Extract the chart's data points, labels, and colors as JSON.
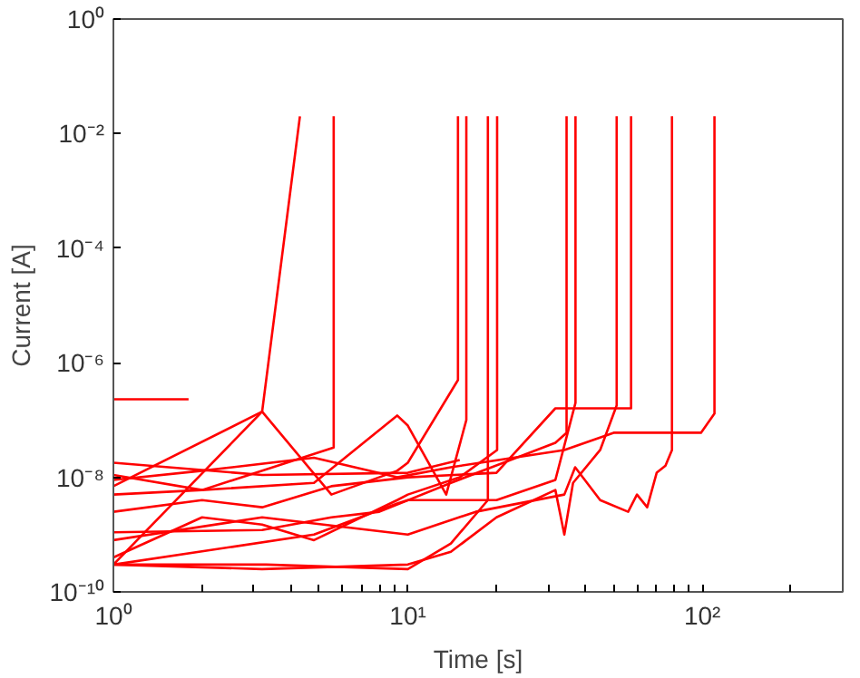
{
  "chart_data": {
    "type": "line",
    "xlabel": "Time [s]",
    "ylabel": "Current [A]",
    "log": "xy",
    "grid": false,
    "xlim": [
      1,
      300
    ],
    "ylim": [
      1e-10,
      1
    ],
    "xticks": [
      {
        "value": 1,
        "label": "10⁰"
      },
      {
        "value": 2,
        "label": null
      },
      {
        "value": 3,
        "label": null
      },
      {
        "value": 4,
        "label": null
      },
      {
        "value": 5,
        "label": null
      },
      {
        "value": 6,
        "label": null
      },
      {
        "value": 7,
        "label": null
      },
      {
        "value": 8,
        "label": null
      },
      {
        "value": 9,
        "label": null
      },
      {
        "value": 10,
        "label": "10¹"
      },
      {
        "value": 20,
        "label": null
      },
      {
        "value": 30,
        "label": null
      },
      {
        "value": 40,
        "label": null
      },
      {
        "value": 50,
        "label": null
      },
      {
        "value": 60,
        "label": null
      },
      {
        "value": 70,
        "label": null
      },
      {
        "value": 80,
        "label": null
      },
      {
        "value": 90,
        "label": null
      },
      {
        "value": 100,
        "label": "10²"
      },
      {
        "value": 200,
        "label": null
      }
    ],
    "yticks": [
      {
        "value": 1e-10,
        "label": "10⁻¹⁰"
      },
      {
        "value": 1e-08,
        "label": "10⁻⁸"
      },
      {
        "value": 1e-06,
        "label": "10⁻⁶"
      },
      {
        "value": 0.0001,
        "label": "10⁻⁴"
      },
      {
        "value": 0.01,
        "label": "10⁻²"
      },
      {
        "value": 1,
        "label": "10⁰"
      }
    ],
    "series": [
      {
        "color": "#ff0000",
        "x": [
          1,
          3.2,
          4.3
        ],
        "values": [
          3e-10,
          1.4e-07,
          0.02
        ]
      },
      {
        "color": "#ff0000",
        "x": [
          1,
          2,
          5.6,
          5.6
        ],
        "values": [
          1.1e-08,
          6e-09,
          3.3e-08,
          0.02
        ]
      },
      {
        "color": "#ff0000",
        "x": [
          1,
          1.8
        ],
        "values": [
          2.3e-07,
          2.3e-07
        ]
      },
      {
        "color": "#ff0000",
        "x": [
          1,
          3.2,
          5.5,
          9.2,
          10,
          14.8,
          14.8
        ],
        "values": [
          7e-09,
          1.4e-07,
          5e-09,
          1.3e-08,
          1.8e-08,
          5e-07,
          0.02
        ]
      },
      {
        "color": "#ff0000",
        "x": [
          1,
          2,
          4.8,
          9.2,
          10,
          13.5,
          15.8,
          15.8
        ],
        "values": [
          5e-09,
          6e-09,
          8e-09,
          1.2e-07,
          8e-08,
          5e-09,
          1e-07,
          0.02
        ]
      },
      {
        "color": "#ff0000",
        "x": [
          1,
          1.8,
          3.3,
          10,
          14,
          18.7,
          18.7
        ],
        "values": [
          3e-10,
          3e-10,
          3e-10,
          2.5e-10,
          7e-10,
          4e-09,
          0.02
        ]
      },
      {
        "color": "#ff0000",
        "x": [
          1,
          2,
          3.2,
          4.8,
          9.2,
          10,
          15,
          20.1,
          20.1
        ],
        "values": [
          4e-10,
          2e-09,
          1.5e-09,
          8e-10,
          4e-09,
          5e-09,
          1e-08,
          3e-08,
          0.02
        ]
      },
      {
        "color": "#ff0000",
        "x": [
          1,
          3.2,
          5.5,
          8,
          14,
          31.7,
          34.6,
          34.6
        ],
        "values": [
          1.1e-09,
          1.2e-09,
          2e-09,
          2.5e-09,
          8e-09,
          4e-08,
          6e-08,
          0.02
        ]
      },
      {
        "color": "#ff0000",
        "x": [
          1,
          4.8,
          9.2,
          10,
          20,
          31.7,
          37.1,
          37.1
        ],
        "values": [
          3e-10,
          1e-09,
          3.5e-09,
          4e-09,
          4e-09,
          9e-09,
          2e-07,
          0.02
        ]
      },
      {
        "color": "#ff0000",
        "x": [
          1,
          3.2,
          10,
          14,
          20,
          31.7,
          34,
          36.4,
          45,
          51.2,
          51.2
        ],
        "values": [
          3e-10,
          2.5e-10,
          3e-10,
          5e-10,
          2e-09,
          6e-09,
          1e-09,
          8e-09,
          3e-08,
          1.8e-07,
          0.02
        ]
      },
      {
        "color": "#ff0000",
        "x": [
          1,
          2,
          3.2,
          5.5,
          10,
          20,
          31.7,
          57.3,
          57.3
        ],
        "values": [
          2.5e-09,
          4e-09,
          3e-09,
          7e-09,
          1e-08,
          1.2e-08,
          1.6e-07,
          1.6e-07,
          0.02
        ]
      },
      {
        "color": "#ff0000",
        "x": [
          1,
          3.2,
          10,
          17,
          34,
          37,
          45,
          56,
          60,
          65,
          70,
          75,
          78.9,
          78.9
        ],
        "values": [
          8e-10,
          2e-09,
          1e-09,
          2.5e-09,
          5e-09,
          1.5e-08,
          4e-09,
          2.5e-09,
          5e-09,
          3e-09,
          1.2e-08,
          1.6e-08,
          3e-08,
          0.02
        ]
      },
      {
        "color": "#ff0000",
        "x": [
          1,
          2,
          4.8,
          9.2,
          14,
          34,
          50,
          99,
          103,
          110,
          110
        ],
        "values": [
          9e-09,
          1.3e-08,
          2.2e-08,
          1e-08,
          1.5e-08,
          3e-08,
          6e-08,
          6e-08,
          8e-08,
          1.3e-07,
          0.02
        ]
      },
      {
        "color": "#ff0000",
        "x": [
          1,
          3.2,
          10,
          15
        ],
        "values": [
          1.8e-08,
          1.1e-08,
          1.2e-08,
          2e-08
        ]
      }
    ]
  }
}
